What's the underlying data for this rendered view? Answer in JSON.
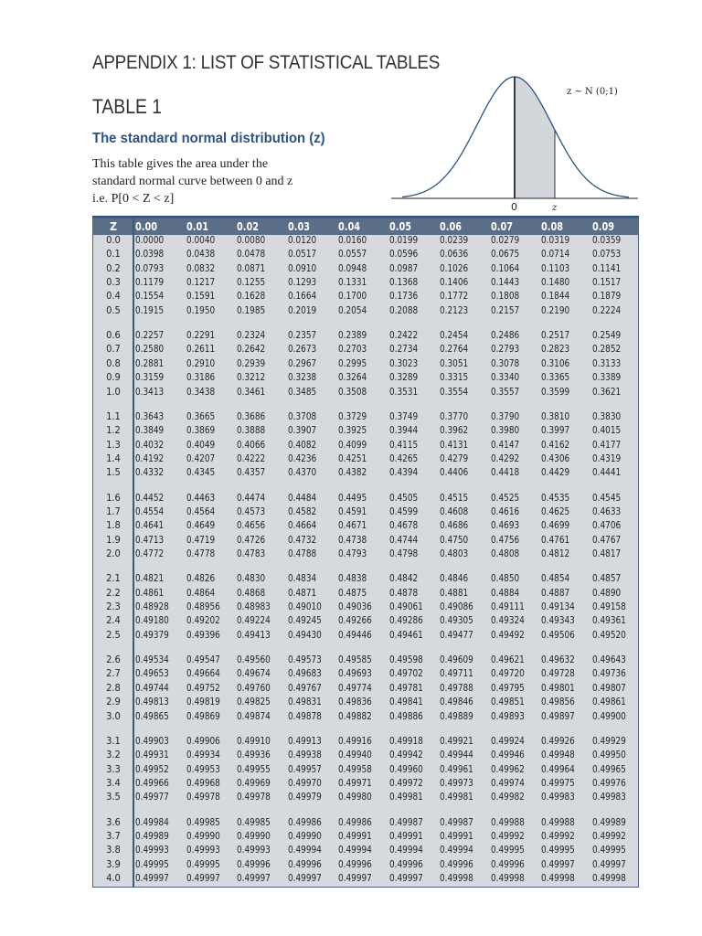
{
  "header": {
    "appendix_title": "APPENDIX 1: LIST OF STATISTICAL TABLES",
    "table_title": "TABLE 1",
    "subtitle": "The standard normal distribution (z)",
    "description_lines": [
      "This table gives the area under the",
      "standard normal curve between 0 and z",
      "i.e. P[0 < Z < z]"
    ]
  },
  "figure": {
    "label": "z ~ N (0;1)",
    "origin_label": "0",
    "z_label": "z",
    "accent_color": "#2d5480",
    "shade_color": "#d3d7dc"
  },
  "table": {
    "columns": [
      "Z",
      "0.00",
      "0.01",
      "0.02",
      "0.03",
      "0.04",
      "0.05",
      "0.06",
      "0.07",
      "0.08",
      "0.09"
    ],
    "groups": [
      [
        {
          "z": "0.0",
          "v": [
            "0.0000",
            "0.0040",
            "0.0080",
            "0.0120",
            "0.0160",
            "0.0199",
            "0.0239",
            "0.0279",
            "0.0319",
            "0.0359"
          ]
        },
        {
          "z": "0.1",
          "v": [
            "0.0398",
            "0.0438",
            "0.0478",
            "0.0517",
            "0.0557",
            "0.0596",
            "0.0636",
            "0.0675",
            "0.0714",
            "0.0753"
          ]
        },
        {
          "z": "0.2",
          "v": [
            "0.0793",
            "0.0832",
            "0.0871",
            "0.0910",
            "0.0948",
            "0.0987",
            "0.1026",
            "0.1064",
            "0.1103",
            "0.1141"
          ]
        },
        {
          "z": "0.3",
          "v": [
            "0.1179",
            "0.1217",
            "0.1255",
            "0.1293",
            "0.1331",
            "0.1368",
            "0.1406",
            "0.1443",
            "0.1480",
            "0.1517"
          ]
        },
        {
          "z": "0.4",
          "v": [
            "0.1554",
            "0.1591",
            "0.1628",
            "0.1664",
            "0.1700",
            "0.1736",
            "0.1772",
            "0.1808",
            "0.1844",
            "0.1879"
          ]
        },
        {
          "z": "0.5",
          "v": [
            "0.1915",
            "0.1950",
            "0.1985",
            "0.2019",
            "0.2054",
            "0.2088",
            "0.2123",
            "0.2157",
            "0.2190",
            "0.2224"
          ]
        }
      ],
      [
        {
          "z": "0.6",
          "v": [
            "0.2257",
            "0.2291",
            "0.2324",
            "0.2357",
            "0.2389",
            "0.2422",
            "0.2454",
            "0.2486",
            "0.2517",
            "0.2549"
          ]
        },
        {
          "z": "0.7",
          "v": [
            "0.2580",
            "0.2611",
            "0.2642",
            "0.2673",
            "0.2703",
            "0.2734",
            "0.2764",
            "0.2793",
            "0.2823",
            "0.2852"
          ]
        },
        {
          "z": "0.8",
          "v": [
            "0.2881",
            "0.2910",
            "0.2939",
            "0.2967",
            "0.2995",
            "0.3023",
            "0.3051",
            "0.3078",
            "0.3106",
            "0.3133"
          ]
        },
        {
          "z": "0.9",
          "v": [
            "0.3159",
            "0.3186",
            "0.3212",
            "0.3238",
            "0.3264",
            "0.3289",
            "0.3315",
            "0.3340",
            "0.3365",
            "0.3389"
          ]
        },
        {
          "z": "1.0",
          "v": [
            "0.3413",
            "0.3438",
            "0.3461",
            "0.3485",
            "0.3508",
            "0.3531",
            "0.3554",
            "0.3557",
            "0.3599",
            "0.3621"
          ]
        }
      ],
      [
        {
          "z": "1.1",
          "v": [
            "0.3643",
            "0.3665",
            "0.3686",
            "0.3708",
            "0.3729",
            "0.3749",
            "0.3770",
            "0.3790",
            "0.3810",
            "0.3830"
          ]
        },
        {
          "z": "1.2",
          "v": [
            "0.3849",
            "0.3869",
            "0.3888",
            "0.3907",
            "0.3925",
            "0.3944",
            "0.3962",
            "0.3980",
            "0.3997",
            "0.4015"
          ]
        },
        {
          "z": "1.3",
          "v": [
            "0.4032",
            "0.4049",
            "0.4066",
            "0.4082",
            "0.4099",
            "0.4115",
            "0.4131",
            "0.4147",
            "0.4162",
            "0.4177"
          ]
        },
        {
          "z": "1.4",
          "v": [
            "0.4192",
            "0.4207",
            "0.4222",
            "0.4236",
            "0.4251",
            "0.4265",
            "0.4279",
            "0.4292",
            "0.4306",
            "0.4319"
          ]
        },
        {
          "z": "1.5",
          "v": [
            "0.4332",
            "0.4345",
            "0.4357",
            "0.4370",
            "0.4382",
            "0.4394",
            "0.4406",
            "0.4418",
            "0.4429",
            "0.4441"
          ]
        }
      ],
      [
        {
          "z": "1.6",
          "v": [
            "0.4452",
            "0.4463",
            "0.4474",
            "0.4484",
            "0.4495",
            "0.4505",
            "0.4515",
            "0.4525",
            "0.4535",
            "0.4545"
          ]
        },
        {
          "z": "1.7",
          "v": [
            "0.4554",
            "0.4564",
            "0.4573",
            "0.4582",
            "0.4591",
            "0.4599",
            "0.4608",
            "0.4616",
            "0.4625",
            "0.4633"
          ]
        },
        {
          "z": "1.8",
          "v": [
            "0.4641",
            "0.4649",
            "0.4656",
            "0.4664",
            "0.4671",
            "0.4678",
            "0.4686",
            "0.4693",
            "0.4699",
            "0.4706"
          ]
        },
        {
          "z": "1.9",
          "v": [
            "0.4713",
            "0.4719",
            "0.4726",
            "0.4732",
            "0.4738",
            "0.4744",
            "0.4750",
            "0.4756",
            "0.4761",
            "0.4767"
          ]
        },
        {
          "z": "2.0",
          "v": [
            "0.4772",
            "0.4778",
            "0.4783",
            "0.4788",
            "0.4793",
            "0.4798",
            "0.4803",
            "0.4808",
            "0.4812",
            "0.4817"
          ]
        }
      ],
      [
        {
          "z": "2.1",
          "v": [
            "0.4821",
            "0.4826",
            "0.4830",
            "0.4834",
            "0.4838",
            "0.4842",
            "0.4846",
            "0.4850",
            "0.4854",
            "0.4857"
          ]
        },
        {
          "z": "2.2",
          "v": [
            "0.4861",
            "0.4864",
            "0.4868",
            "0.4871",
            "0.4875",
            "0.4878",
            "0.4881",
            "0.4884",
            "0.4887",
            "0.4890"
          ]
        },
        {
          "z": "2.3",
          "v": [
            "0.48928",
            "0.48956",
            "0.48983",
            "0.49010",
            "0.49036",
            "0.49061",
            "0.49086",
            "0.49111",
            "0.49134",
            "0.49158"
          ]
        },
        {
          "z": "2.4",
          "v": [
            "0.49180",
            "0.49202",
            "0.49224",
            "0.49245",
            "0.49266",
            "0.49286",
            "0.49305",
            "0.49324",
            "0.49343",
            "0.49361"
          ]
        },
        {
          "z": "2.5",
          "v": [
            "0.49379",
            "0.49396",
            "0.49413",
            "0.49430",
            "0.49446",
            "0.49461",
            "0.49477",
            "0.49492",
            "0.49506",
            "0.49520"
          ]
        }
      ],
      [
        {
          "z": "2.6",
          "v": [
            "0.49534",
            "0.49547",
            "0.49560",
            "0.49573",
            "0.49585",
            "0.49598",
            "0.49609",
            "0.49621",
            "0.49632",
            "0.49643"
          ]
        },
        {
          "z": "2.7",
          "v": [
            "0.49653",
            "0.49664",
            "0.49674",
            "0.49683",
            "0.49693",
            "0.49702",
            "0.49711",
            "0.49720",
            "0.49728",
            "0.49736"
          ]
        },
        {
          "z": "2.8",
          "v": [
            "0.49744",
            "0.49752",
            "0.49760",
            "0.49767",
            "0.49774",
            "0.49781",
            "0.49788",
            "0.49795",
            "0.49801",
            "0.49807"
          ]
        },
        {
          "z": "2.9",
          "v": [
            "0.49813",
            "0.49819",
            "0.49825",
            "0.49831",
            "0.49836",
            "0.49841",
            "0.49846",
            "0.49851",
            "0.49856",
            "0.49861"
          ]
        },
        {
          "z": "3.0",
          "v": [
            "0.49865",
            "0.49869",
            "0.49874",
            "0.49878",
            "0.49882",
            "0.49886",
            "0.49889",
            "0.49893",
            "0.49897",
            "0.49900"
          ]
        }
      ],
      [
        {
          "z": "3.1",
          "v": [
            "0.49903",
            "0.49906",
            "0.49910",
            "0.49913",
            "0.49916",
            "0.49918",
            "0.49921",
            "0.49924",
            "0.49926",
            "0.49929"
          ]
        },
        {
          "z": "3.2",
          "v": [
            "0.49931",
            "0.49934",
            "0.49936",
            "0.49938",
            "0.49940",
            "0.49942",
            "0.49944",
            "0.49946",
            "0.49948",
            "0.49950"
          ]
        },
        {
          "z": "3.3",
          "v": [
            "0.49952",
            "0.49953",
            "0.49955",
            "0.49957",
            "0.49958",
            "0.49960",
            "0.49961",
            "0.49962",
            "0.49964",
            "0.49965"
          ]
        },
        {
          "z": "3.4",
          "v": [
            "0.49966",
            "0.49968",
            "0.49969",
            "0.49970",
            "0.49971",
            "0.49972",
            "0.49973",
            "0.49974",
            "0.49975",
            "0.49976"
          ]
        },
        {
          "z": "3.5",
          "v": [
            "0.49977",
            "0.49978",
            "0.49978",
            "0.49979",
            "0.49980",
            "0.49981",
            "0.49981",
            "0.49982",
            "0.49983",
            "0.49983"
          ]
        }
      ],
      [
        {
          "z": "3.6",
          "v": [
            "0.49984",
            "0.49985",
            "0.49985",
            "0.49986",
            "0.49986",
            "0.49987",
            "0.49987",
            "0.49988",
            "0.49988",
            "0.49989"
          ]
        },
        {
          "z": "3.7",
          "v": [
            "0.49989",
            "0.49990",
            "0.49990",
            "0.49990",
            "0.49991",
            "0.49991",
            "0.49991",
            "0.49992",
            "0.49992",
            "0.49992"
          ]
        },
        {
          "z": "3.8",
          "v": [
            "0.49993",
            "0.49993",
            "0.49993",
            "0.49994",
            "0.49994",
            "0.49994",
            "0.49994",
            "0.49995",
            "0.49995",
            "0.49995"
          ]
        },
        {
          "z": "3.9",
          "v": [
            "0.49995",
            "0.49995",
            "0.49996",
            "0.49996",
            "0.49996",
            "0.49996",
            "0.49996",
            "0.49996",
            "0.49997",
            "0.49997"
          ]
        },
        {
          "z": "4.0",
          "v": [
            "0.49997",
            "0.49997",
            "0.49997",
            "0.49997",
            "0.49997",
            "0.49997",
            "0.49998",
            "0.49998",
            "0.49998",
            "0.49998"
          ]
        }
      ]
    ]
  }
}
